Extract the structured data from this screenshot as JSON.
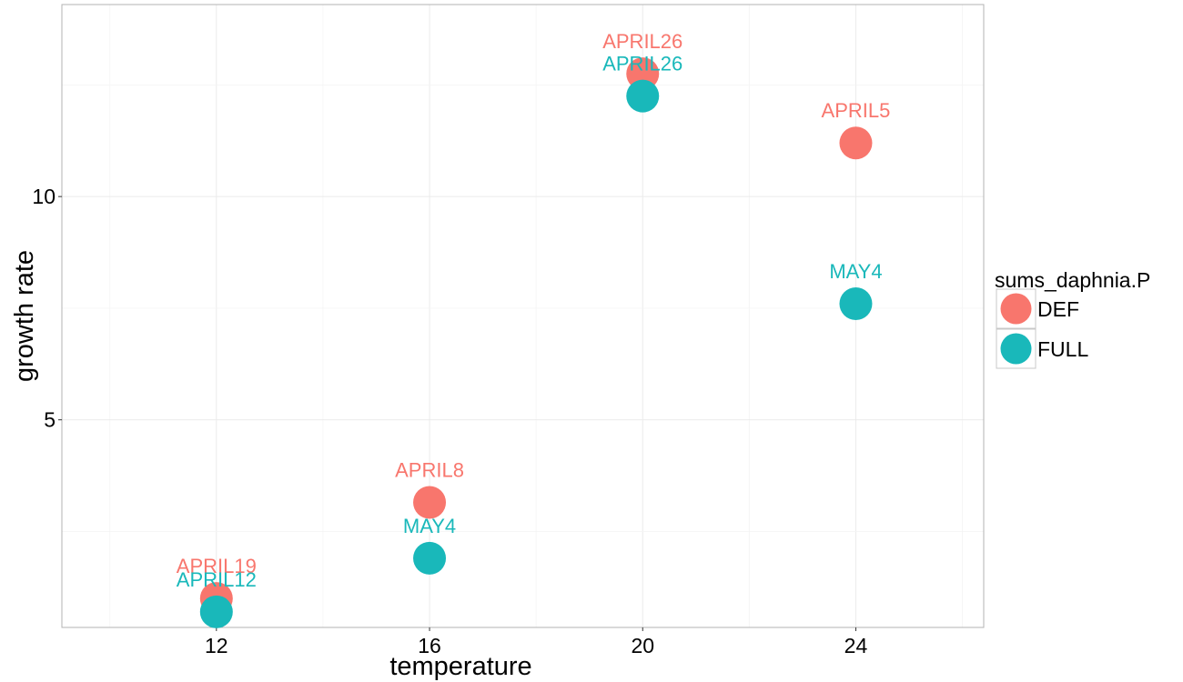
{
  "chart_data": {
    "type": "scatter",
    "title": "",
    "xlabel": "temperature",
    "ylabel": "growth rate",
    "xlim": [
      9.1,
      26.4
    ],
    "ylim": [
      0.35,
      14.3
    ],
    "x_ticks": [
      12,
      16,
      20,
      24
    ],
    "y_ticks": [
      5,
      10
    ],
    "grid": true,
    "legend": {
      "title": "sums_daphnia.P",
      "placement": "right",
      "entries": [
        {
          "name": "DEF",
          "color": "#F8766D"
        },
        {
          "name": "FULL",
          "color": "#19B8BA"
        }
      ]
    },
    "series": [
      {
        "name": "DEF",
        "color": "#F8766D",
        "points": [
          {
            "x": 12,
            "y": 1.0,
            "label": "APRIL19"
          },
          {
            "x": 16,
            "y": 3.15,
            "label": "APRIL8"
          },
          {
            "x": 20,
            "y": 12.75,
            "label": "APRIL26"
          },
          {
            "x": 24,
            "y": 11.2,
            "label": "APRIL5"
          }
        ]
      },
      {
        "name": "FULL",
        "color": "#19B8BA",
        "points": [
          {
            "x": 12,
            "y": 0.7,
            "label": "APRIL12"
          },
          {
            "x": 16,
            "y": 1.9,
            "label": "MAY4"
          },
          {
            "x": 20,
            "y": 12.25,
            "label": "APRIL26"
          },
          {
            "x": 24,
            "y": 7.6,
            "label": "MAY4"
          }
        ]
      }
    ]
  }
}
